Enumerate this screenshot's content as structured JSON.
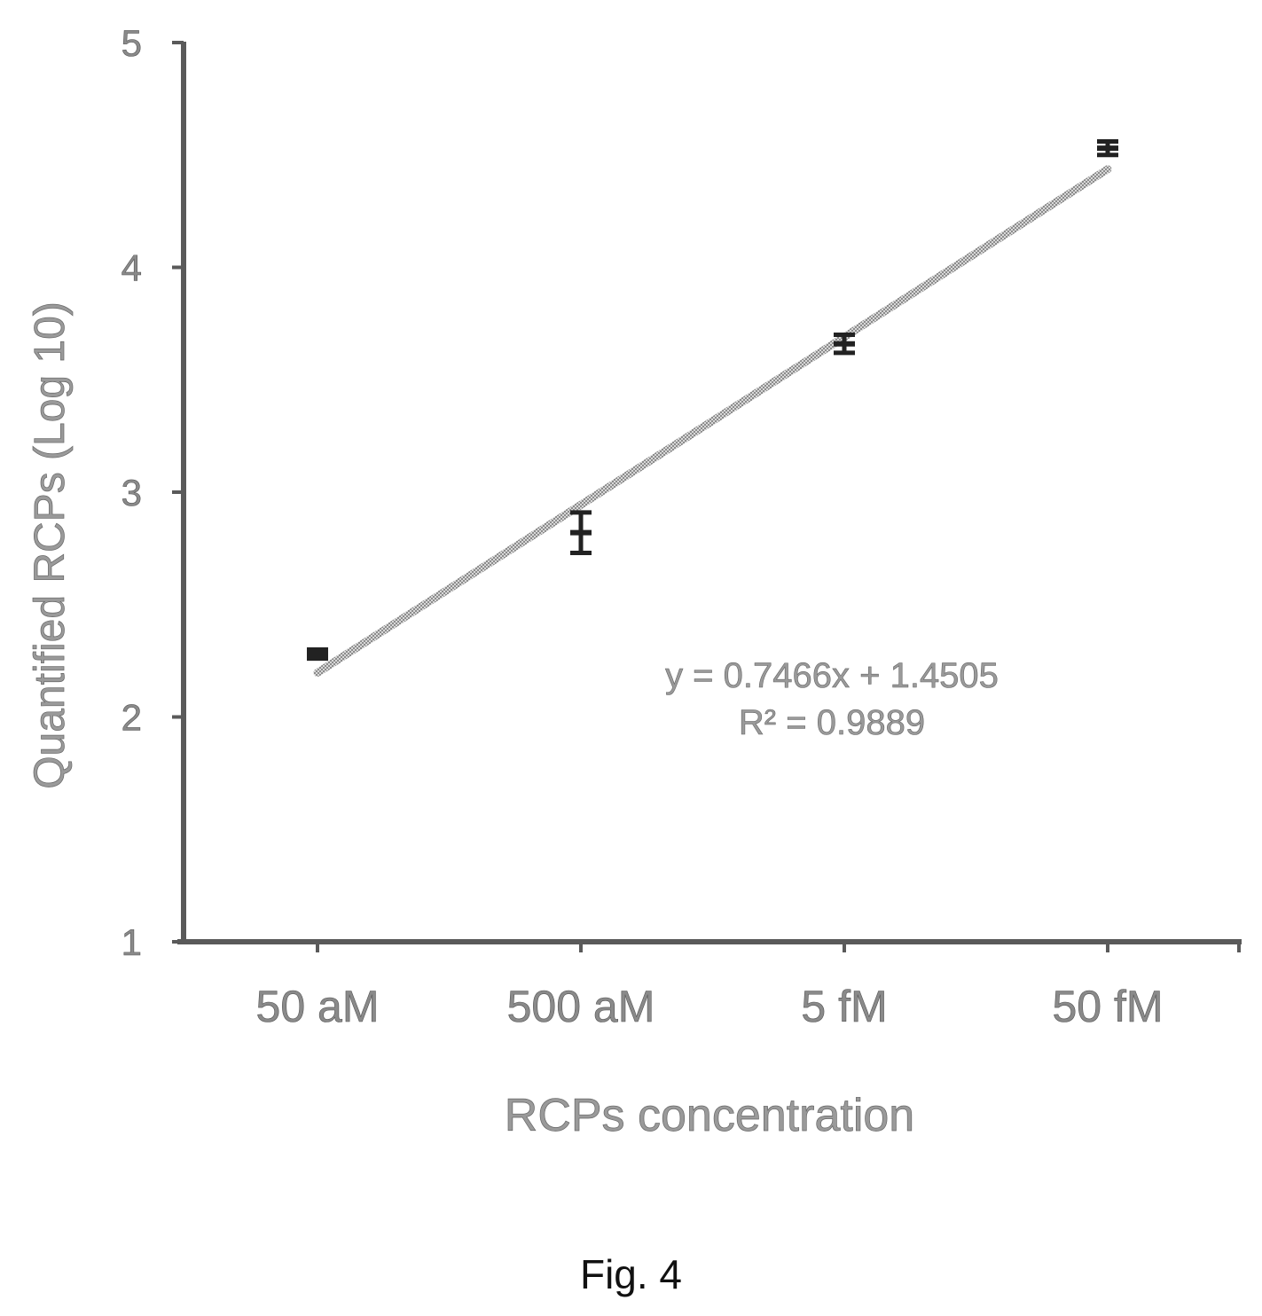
{
  "chart_data": {
    "type": "scatter",
    "categories": [
      "50 aM",
      "500 aM",
      "5 fM",
      "50 fM"
    ],
    "x": [
      1,
      2,
      3,
      4
    ],
    "series": [
      {
        "values": [
          2.28,
          2.82,
          3.66,
          4.53
        ],
        "error": [
          0.02,
          0.09,
          0.04,
          0.03
        ]
      }
    ],
    "trendline": {
      "type": "linear",
      "slope": 0.7466,
      "intercept": 1.4505,
      "equation": "y = 0.7466x + 1.4505",
      "r_squared": "R² = 0.9889"
    },
    "xlabel": "RCPs concentration",
    "ylabel": "Quantified RCPs (Log 10)",
    "ylim": [
      1,
      5
    ],
    "yticks": [
      "1",
      "2",
      "3",
      "4",
      "5"
    ],
    "grid": false
  },
  "caption": "Fig. 4"
}
